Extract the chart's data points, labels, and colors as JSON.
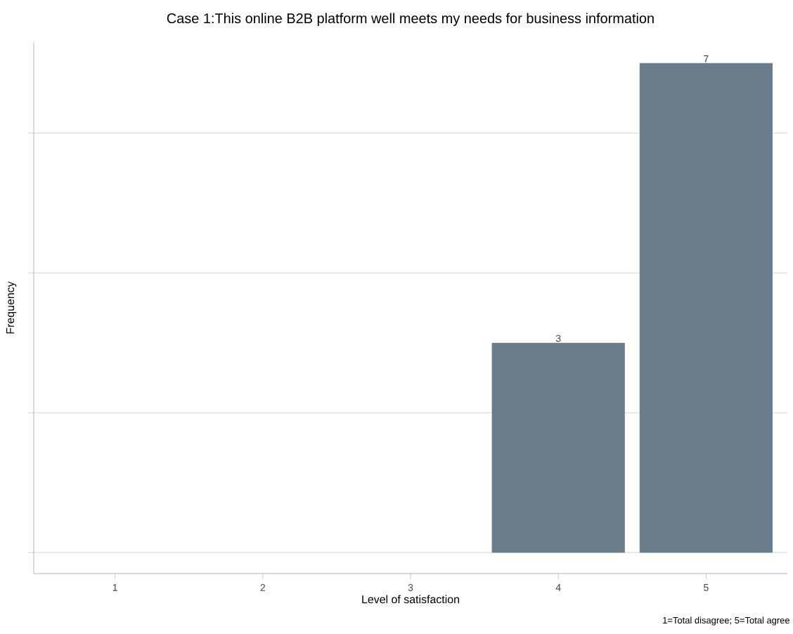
{
  "chart_data": {
    "type": "bar",
    "title": "Case 1:This online B2B platform well meets my needs for business information",
    "xlabel": "Level of satisfaction",
    "ylabel": "Frequency",
    "categories": [
      "1",
      "2",
      "3",
      "4",
      "5"
    ],
    "values": [
      0,
      0,
      0,
      3,
      7
    ],
    "value_labels": [
      null,
      null,
      null,
      "3",
      "7"
    ],
    "color": "#6a7d8b",
    "ylim": [
      -0.3,
      7.3
    ],
    "yticks": [
      {
        "value": 0,
        "label": null
      },
      {
        "value": 2,
        "label": null
      },
      {
        "value": 4,
        "label": null
      },
      {
        "value": 6,
        "label": null
      }
    ],
    "tick_labels": "x",
    "grid": "y",
    "annotations": [
      "1=Total disagree; 5=Total agree"
    ]
  }
}
